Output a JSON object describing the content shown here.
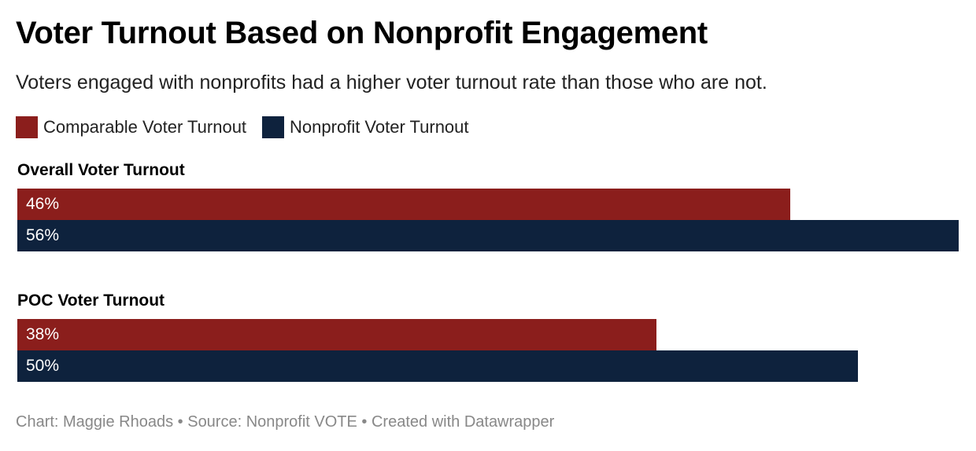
{
  "title": "Voter Turnout Based on Nonprofit Engagement",
  "subtitle": "Voters engaged with nonprofits had a higher voter turnout rate than those who are not.",
  "legend": [
    {
      "label": "Comparable Voter Turnout",
      "color": "#8b1e1c"
    },
    {
      "label": "Nonprofit Voter Turnout",
      "color": "#0e223d"
    }
  ],
  "footer": "Chart: Maggie Rhoads • Source: Nonprofit VOTE • Created with Datawrapper",
  "chart_data": {
    "type": "bar",
    "orientation": "horizontal",
    "categories": [
      "Overall Voter Turnout",
      "POC Voter Turnout"
    ],
    "series": [
      {
        "name": "Comparable Voter Turnout",
        "values": [
          46,
          38
        ],
        "labels": [
          "46%",
          "38%"
        ],
        "color": "#8b1e1c"
      },
      {
        "name": "Nonprofit Voter Turnout",
        "values": [
          56,
          50
        ],
        "labels": [
          "56%",
          "50%"
        ],
        "color": "#0e223d"
      }
    ],
    "xlim": [
      0,
      56
    ],
    "grid": false,
    "legend_position": "top-left"
  }
}
